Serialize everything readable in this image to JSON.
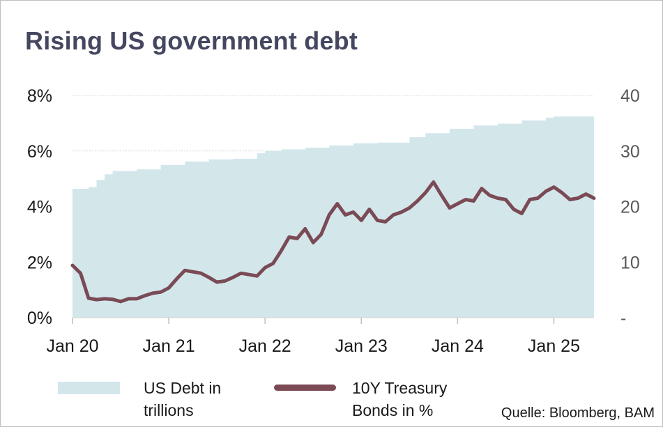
{
  "title": "Rising US government debt",
  "source": "Quelle: Bloomberg, BAM",
  "legend": {
    "debt": [
      "US Debt in",
      "trillions"
    ],
    "yield": [
      "10Y Treasury",
      "Bonds in %"
    ]
  },
  "colors": {
    "area": "#d3e7eb",
    "line": "#7a4a55",
    "title": "#44475f",
    "grid": "#d9d9d9"
  },
  "chart_data": {
    "type": "line",
    "x_ticks": [
      "Jan 20",
      "Jan 21",
      "Jan 22",
      "Jan 23",
      "Jan 24",
      "Jan 25"
    ],
    "x_range": [
      "2020-01",
      "2025-06"
    ],
    "y_left": {
      "ticks": [
        "0%",
        "2%",
        "4%",
        "6%",
        "8%"
      ],
      "range": [
        0,
        8
      ],
      "unit": "%"
    },
    "y_right": {
      "ticks": [
        "-",
        "10",
        "20",
        "30",
        "40"
      ],
      "range": [
        0,
        40
      ]
    },
    "grid": true,
    "series": [
      {
        "name": "US Debt in trillions",
        "kind": "area",
        "axis": "right",
        "x": [
          "2020-01",
          "2020-03",
          "2020-04",
          "2020-05",
          "2020-06",
          "2020-09",
          "2020-12",
          "2021-03",
          "2021-06",
          "2021-09",
          "2021-12",
          "2022-01",
          "2022-03",
          "2022-06",
          "2022-09",
          "2022-12",
          "2023-03",
          "2023-06",
          "2023-07",
          "2023-09",
          "2023-12",
          "2024-03",
          "2024-06",
          "2024-09",
          "2024-12",
          "2025-01",
          "2025-06"
        ],
        "values": [
          23.2,
          23.5,
          24.8,
          25.8,
          26.4,
          26.7,
          27.5,
          28.1,
          28.5,
          28.6,
          29.6,
          30.0,
          30.3,
          30.6,
          31.0,
          31.4,
          31.5,
          31.5,
          32.5,
          33.2,
          34.0,
          34.6,
          34.9,
          35.5,
          36.0,
          36.2,
          36.2
        ]
      },
      {
        "name": "10Y Treasury Bonds in %",
        "kind": "line",
        "axis": "left",
        "x": [
          "2020-01",
          "2020-02",
          "2020-03",
          "2020-04",
          "2020-05",
          "2020-06",
          "2020-07",
          "2020-08",
          "2020-09",
          "2020-10",
          "2020-11",
          "2020-12",
          "2021-01",
          "2021-02",
          "2021-03",
          "2021-04",
          "2021-05",
          "2021-06",
          "2021-07",
          "2021-08",
          "2021-09",
          "2021-10",
          "2021-11",
          "2021-12",
          "2022-01",
          "2022-02",
          "2022-03",
          "2022-04",
          "2022-05",
          "2022-06",
          "2022-07",
          "2022-08",
          "2022-09",
          "2022-10",
          "2022-11",
          "2022-12",
          "2023-01",
          "2023-02",
          "2023-03",
          "2023-04",
          "2023-05",
          "2023-06",
          "2023-07",
          "2023-08",
          "2023-09",
          "2023-10",
          "2023-11",
          "2023-12",
          "2024-01",
          "2024-02",
          "2024-03",
          "2024-04",
          "2024-05",
          "2024-06",
          "2024-07",
          "2024-08",
          "2024-09",
          "2024-10",
          "2024-11",
          "2024-12",
          "2025-01",
          "2025-02",
          "2025-03",
          "2025-04",
          "2025-05",
          "2025-06"
        ],
        "values": [
          1.88,
          1.6,
          0.7,
          0.65,
          0.68,
          0.66,
          0.58,
          0.68,
          0.68,
          0.79,
          0.88,
          0.92,
          1.07,
          1.4,
          1.7,
          1.65,
          1.6,
          1.45,
          1.28,
          1.32,
          1.45,
          1.6,
          1.55,
          1.5,
          1.8,
          1.95,
          2.4,
          2.9,
          2.85,
          3.2,
          2.7,
          3.0,
          3.7,
          4.1,
          3.7,
          3.8,
          3.5,
          3.9,
          3.5,
          3.45,
          3.7,
          3.8,
          3.95,
          4.2,
          4.5,
          4.88,
          4.4,
          3.95,
          4.1,
          4.25,
          4.2,
          4.65,
          4.4,
          4.3,
          4.25,
          3.9,
          3.75,
          4.25,
          4.3,
          4.55,
          4.7,
          4.5,
          4.25,
          4.3,
          4.45,
          4.3
        ]
      }
    ]
  }
}
